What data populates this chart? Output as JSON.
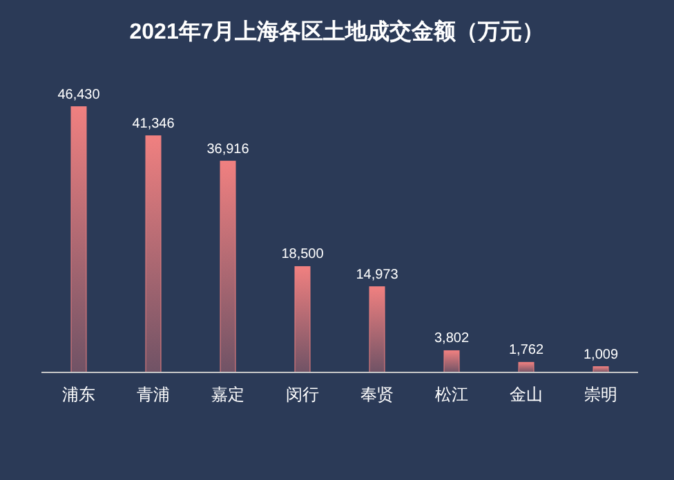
{
  "chart_data": {
    "type": "bar",
    "title": "2021年7月上海各区土地成交金额（万元）",
    "categories": [
      "浦东",
      "青浦",
      "嘉定",
      "闵行",
      "奉贤",
      "松江",
      "金山",
      "崇明"
    ],
    "values": [
      46430,
      41346,
      36916,
      18500,
      14973,
      3802,
      1762,
      1009
    ],
    "value_labels": [
      "46,430",
      "41,346",
      "36,916",
      "18,500",
      "14,973",
      "3,802",
      "1,762",
      "1,009"
    ],
    "color": "#f08080"
  }
}
